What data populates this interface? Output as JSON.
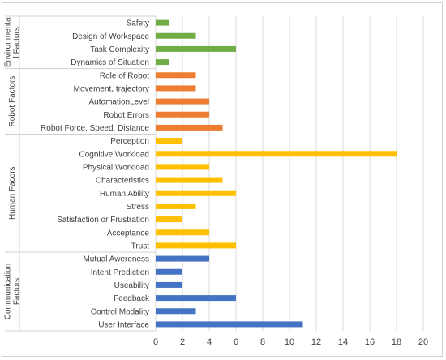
{
  "chart_data": {
    "type": "bar",
    "orientation": "horizontal",
    "xlim": [
      0,
      20
    ],
    "x_ticks": [
      0,
      2,
      4,
      6,
      8,
      10,
      12,
      14,
      16,
      18,
      20
    ],
    "grid": true,
    "legend": "none",
    "groups": [
      {
        "name": "Environmenta l Factors",
        "label_lines": [
          "Environmenta",
          "l Factors"
        ],
        "color": "#70ad47",
        "categories": [
          "Safety",
          "Design of Workspace",
          "Task Complexity",
          "Dynamics of Situation"
        ],
        "values": [
          1,
          3,
          6,
          1
        ]
      },
      {
        "name": "Robot Factors",
        "label_lines": [
          "Robot Factors"
        ],
        "color": "#ed7d31",
        "categories": [
          "Role of Robot",
          "Movement, trajectory",
          "AutomationLevel",
          "Robot Errors",
          "Robot Force, Speed, Distance"
        ],
        "values": [
          3,
          3,
          4,
          4,
          5
        ]
      },
      {
        "name": "Human Facors",
        "label_lines": [
          "Human Facors"
        ],
        "color": "#ffc000",
        "categories": [
          "Perception",
          "Cognitive Workload",
          "Physical Workload",
          "Characteristics",
          "Human Ability",
          "Stress",
          "Satisfaction or Frustration",
          "Acceptance",
          "Trust"
        ],
        "values": [
          2,
          18,
          4,
          5,
          6,
          3,
          2,
          4,
          6
        ]
      },
      {
        "name": "Communication Factors",
        "label_lines": [
          "Communication",
          "Factors"
        ],
        "color": "#4472c4",
        "categories": [
          "Mutual Awereness",
          "Intent Prediction",
          "Useability",
          "Feedback",
          "Control Modality",
          "User Interface"
        ],
        "values": [
          4,
          2,
          2,
          6,
          3,
          11
        ]
      }
    ]
  }
}
